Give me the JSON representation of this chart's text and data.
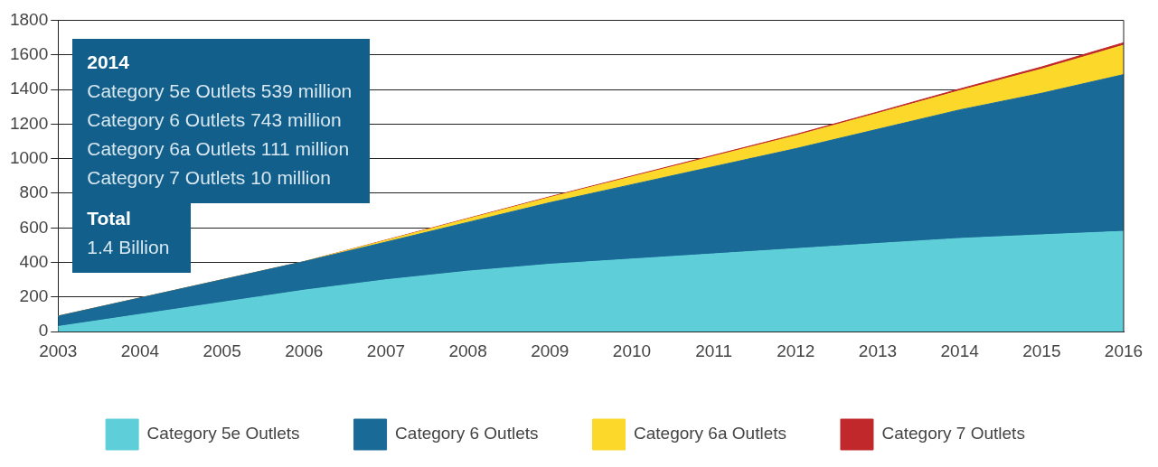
{
  "chart_data": {
    "type": "area",
    "stacked": true,
    "categories": [
      "2003",
      "2004",
      "2005",
      "2006",
      "2007",
      "2008",
      "2009",
      "2010",
      "2011",
      "2012",
      "2013",
      "2014",
      "2015",
      "2016"
    ],
    "series": [
      {
        "name": "Category 5e Outlets",
        "color": "#5ecfd8",
        "values": [
          30,
          100,
          170,
          240,
          300,
          350,
          390,
          420,
          450,
          480,
          510,
          539,
          560,
          580
        ]
      },
      {
        "name": "Category 6 Outlets",
        "color": "#1a6a98",
        "values": [
          60,
          95,
          130,
          165,
          218,
          282,
          356,
          430,
          504,
          578,
          660,
          743,
          818,
          906
        ]
      },
      {
        "name": "Category 6a Outlets",
        "color": "#fcd82a",
        "values": [
          0,
          0,
          0,
          0,
          10,
          20,
          30,
          45,
          60,
          75,
          92,
          111,
          140,
          170
        ]
      },
      {
        "name": "Category 7 Outlets",
        "color": "#c0282c",
        "values": [
          0,
          0,
          0,
          0,
          2,
          3,
          4,
          5,
          6,
          7,
          8,
          10,
          12,
          14
        ]
      }
    ],
    "ylim": [
      0,
      1800
    ],
    "yticks": [
      0,
      200,
      400,
      600,
      800,
      1000,
      1200,
      1400,
      1600,
      1800
    ],
    "grid": "y",
    "legend": "bottom",
    "annotations": [
      "2014\nCategory 5e Outlets 539 million\nCategory 6 Outlets 743 million\nCategory 6a Outlets 111 million\nCategory 7 Outlets 10 million",
      "Total\n1.4 Billion"
    ]
  }
}
